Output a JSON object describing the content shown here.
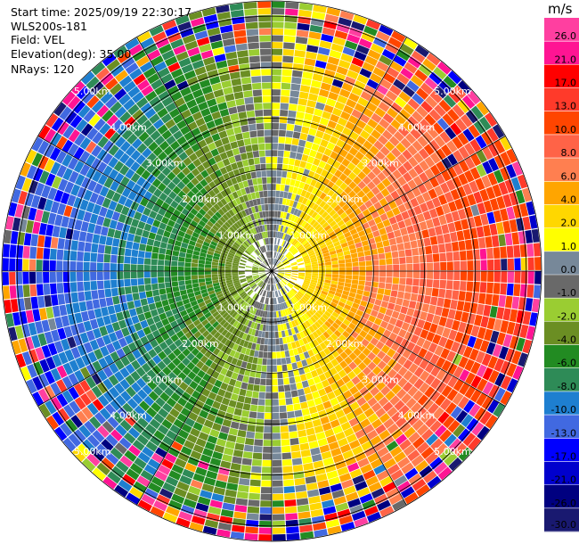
{
  "header": {
    "start_time": "Start time: 2025/09/19 22:30:17",
    "instrument": "WLS200s-181",
    "field": "Field: VEL",
    "elevation": "Elevation(deg): 35.00",
    "nrays": "NRays: 120"
  },
  "chart_data": {
    "type": "heatmap",
    "projection": "polar PPI",
    "field": "VEL",
    "units": "m/s",
    "n_rays": 120,
    "max_range_km": 5.3,
    "range_rings_km": [
      1.0,
      2.0,
      3.0,
      4.0,
      5.0
    ],
    "range_ring_labels": [
      "1.00km",
      "2.00km",
      "3.00km",
      "4.00km",
      "5.00km"
    ],
    "colorbar": {
      "unit_label": "m/s",
      "ticks": [
        "26.0",
        "21.0",
        "17.0",
        "13.0",
        "10.0",
        "8.0",
        "6.0",
        "4.0",
        "2.0",
        "1.0",
        "0.0",
        "-1.0",
        "-2.0",
        "-4.0",
        "-6.0",
        "-8.0",
        "-10.0",
        "-13.0",
        "-17.0",
        "-21.0",
        "-26.0",
        "-30.0"
      ],
      "bins": [
        {
          "from": 26,
          "to": 30,
          "color": "#ff3fa0"
        },
        {
          "from": 21,
          "to": 26,
          "color": "#ff1493"
        },
        {
          "from": 17,
          "to": 21,
          "color": "#ff0000"
        },
        {
          "from": 13,
          "to": 17,
          "color": "#ff3a2a"
        },
        {
          "from": 10,
          "to": 13,
          "color": "#ff4500"
        },
        {
          "from": 8,
          "to": 10,
          "color": "#ff6347"
        },
        {
          "from": 6,
          "to": 8,
          "color": "#ff7f50"
        },
        {
          "from": 4,
          "to": 6,
          "color": "#ffa500"
        },
        {
          "from": 2,
          "to": 4,
          "color": "#ffd700"
        },
        {
          "from": 1,
          "to": 2,
          "color": "#ffff00"
        },
        {
          "from": 0,
          "to": 1,
          "color": "#778899"
        },
        {
          "from": -1,
          "to": 0,
          "color": "#696969"
        },
        {
          "from": -2,
          "to": -1,
          "color": "#9acd32"
        },
        {
          "from": -4,
          "to": -2,
          "color": "#6b8e23"
        },
        {
          "from": -6,
          "to": -4,
          "color": "#228b22"
        },
        {
          "from": -8,
          "to": -6,
          "color": "#2e8b57"
        },
        {
          "from": -10,
          "to": -8,
          "color": "#1e7fd0"
        },
        {
          "from": -13,
          "to": -10,
          "color": "#4169e1"
        },
        {
          "from": -17,
          "to": -13,
          "color": "#0000ff"
        },
        {
          "from": -21,
          "to": -17,
          "color": "#0000cd"
        },
        {
          "from": -26,
          "to": -21,
          "color": "#000080"
        },
        {
          "from": -30,
          "to": -26,
          "color": "#191970"
        }
      ]
    },
    "grid": true,
    "pattern_description": "Radial velocity VAD pattern: positive (toward yellow/orange/red) to the east, negative (green/blue) to the west; noisy speckle at far range."
  }
}
